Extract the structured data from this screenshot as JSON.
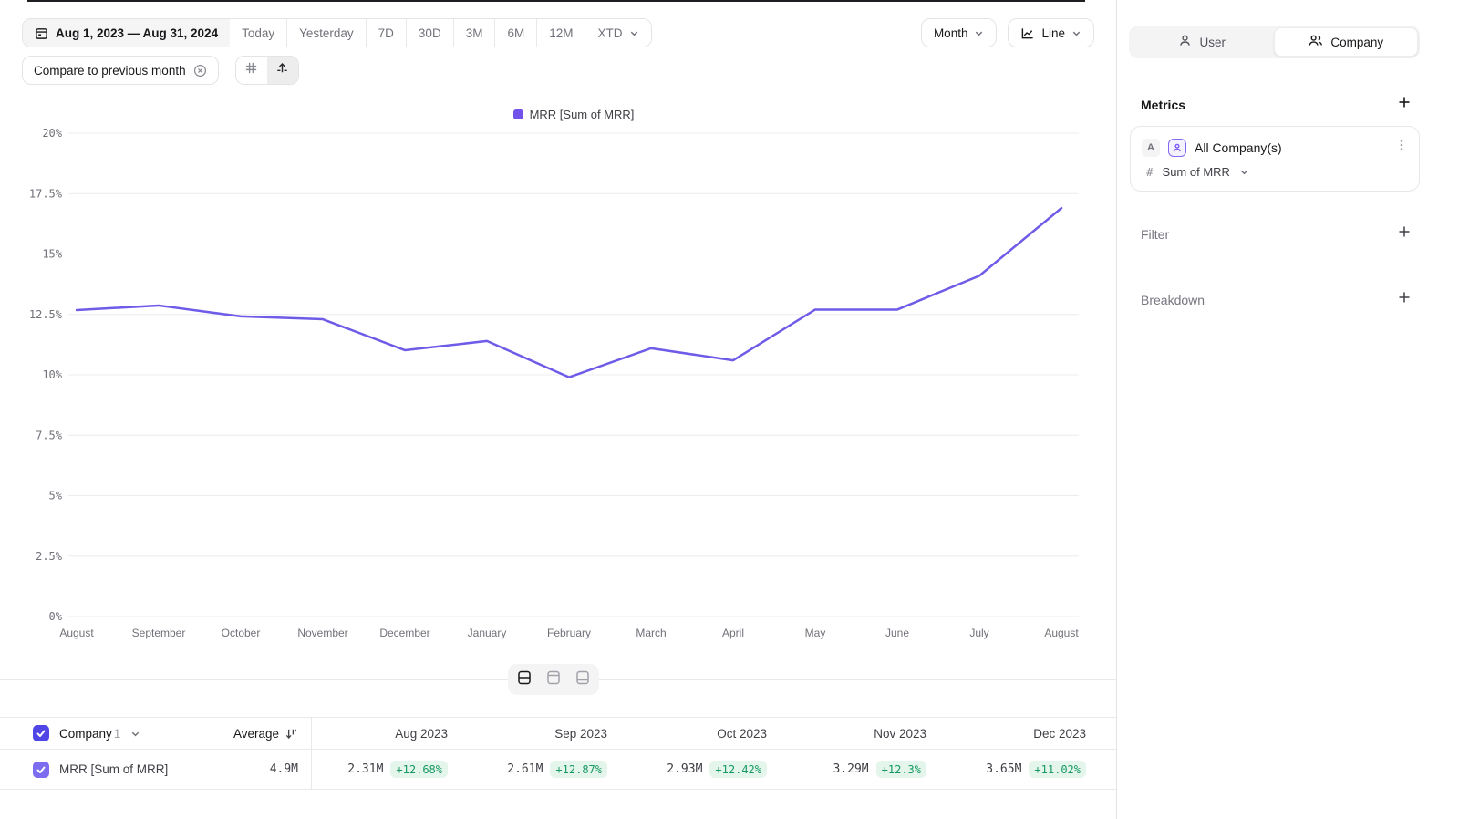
{
  "toolbar": {
    "date_range": "Aug 1, 2023 — Aug 31, 2024",
    "presets": [
      "Today",
      "Yesterday",
      "7D",
      "30D",
      "3M",
      "6M",
      "12M"
    ],
    "xtd_label": "XTD",
    "compare_chip": "Compare to previous month",
    "granularity": "Month",
    "chart_type": "Line"
  },
  "legend": {
    "label": "MRR [Sum of MRR]"
  },
  "chart_data": {
    "type": "line",
    "title": "",
    "series": [
      {
        "name": "MRR [Sum of MRR]",
        "values": [
          12.68,
          12.87,
          12.42,
          12.3,
          11.02,
          11.4,
          9.9,
          11.1,
          10.6,
          12.7,
          12.7,
          14.1,
          16.9
        ]
      }
    ],
    "x": [
      "August",
      "September",
      "October",
      "November",
      "December",
      "January",
      "February",
      "March",
      "April",
      "May",
      "June",
      "July",
      "August"
    ],
    "yticks": [
      "0%",
      "2.5%",
      "5%",
      "7.5%",
      "10%",
      "12.5%",
      "15%",
      "17.5%",
      "20%"
    ],
    "ylim": [
      0,
      20
    ],
    "grid": true,
    "legend_position": "top-center",
    "line_color": "#6e5be8",
    "legend_swatch_color": "#7352ec"
  },
  "sidebar": {
    "tabs": {
      "user": "User",
      "company": "Company"
    },
    "metrics_title": "Metrics",
    "metric": {
      "badge": "A",
      "name": "All Company(s)",
      "aggregation_prefix": "#",
      "aggregation": "Sum of MRR"
    },
    "filter_label": "Filter",
    "breakdown_label": "Breakdown"
  },
  "table": {
    "entity_label": "Company",
    "entity_count": "1",
    "average_label": "Average",
    "columns": [
      "Aug 2023",
      "Sep 2023",
      "Oct 2023",
      "Nov 2023",
      "Dec 2023"
    ],
    "rows": [
      {
        "name": "MRR [Sum of MRR]",
        "average": "4.9M",
        "cells": [
          {
            "value": "2.31M",
            "delta": "+12.68%"
          },
          {
            "value": "2.61M",
            "delta": "+12.87%"
          },
          {
            "value": "2.93M",
            "delta": "+12.42%"
          },
          {
            "value": "3.29M",
            "delta": "+12.3%"
          },
          {
            "value": "3.65M",
            "delta": "+11.02%"
          }
        ]
      }
    ],
    "colors": {
      "header_checkbox": "#5046e5",
      "row_checkbox": "#7c6cef",
      "delta_bg": "#e4f5ec",
      "delta_text": "#169a62"
    }
  }
}
